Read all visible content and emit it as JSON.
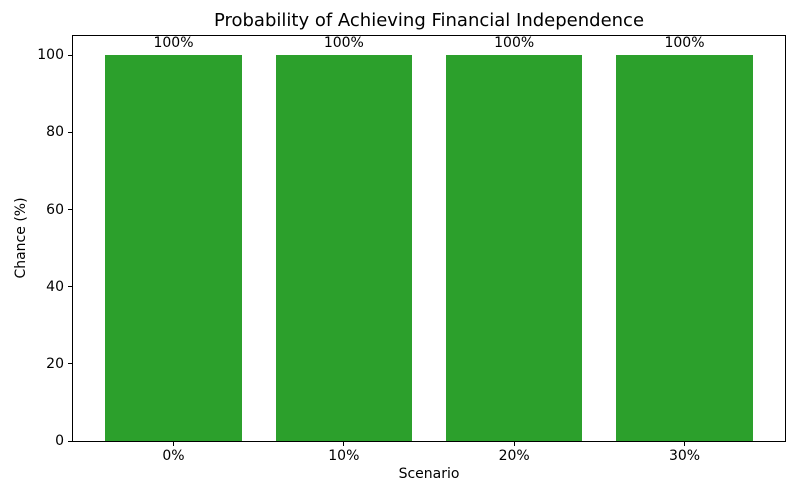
{
  "chart_data": {
    "type": "bar",
    "title": "Probability of Achieving Financial Independence",
    "xlabel": "Scenario",
    "ylabel": "Chance (%)",
    "categories": [
      "0%",
      "10%",
      "20%",
      "30%"
    ],
    "values": [
      100,
      100,
      100,
      100
    ],
    "bar_labels": [
      "100%",
      "100%",
      "100%",
      "100%"
    ],
    "yticks": [
      0,
      20,
      40,
      60,
      80,
      100
    ],
    "ylim": [
      0,
      105
    ],
    "grid": false,
    "legend": false,
    "colors": {
      "bar": "#2ca02c",
      "text": "#000000",
      "spine": "#000000",
      "background": "#ffffff"
    }
  }
}
